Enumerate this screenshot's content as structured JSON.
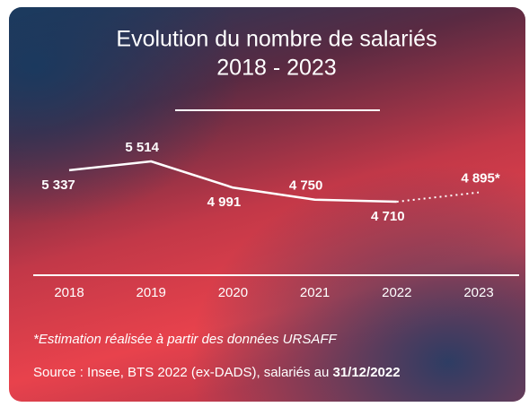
{
  "chart_data": {
    "type": "line",
    "title": "Evolution du nombre de salariés",
    "subtitle": "2018 - 2023",
    "categories": [
      "2018",
      "2019",
      "2020",
      "2021",
      "2022",
      "2023"
    ],
    "values": [
      5337,
      5514,
      4991,
      4750,
      4710,
      4895
    ],
    "value_labels": [
      "5 337",
      "5 514",
      "4 991",
      "4 750",
      "4 710",
      "4 895*"
    ],
    "color": "#ffffff",
    "note": "*Estimation réalisée à partir des données URSAFF",
    "source": "Source : Insee, BTS 2022 (ex-DADS), salariés au",
    "source_date": "31/12/2022"
  }
}
